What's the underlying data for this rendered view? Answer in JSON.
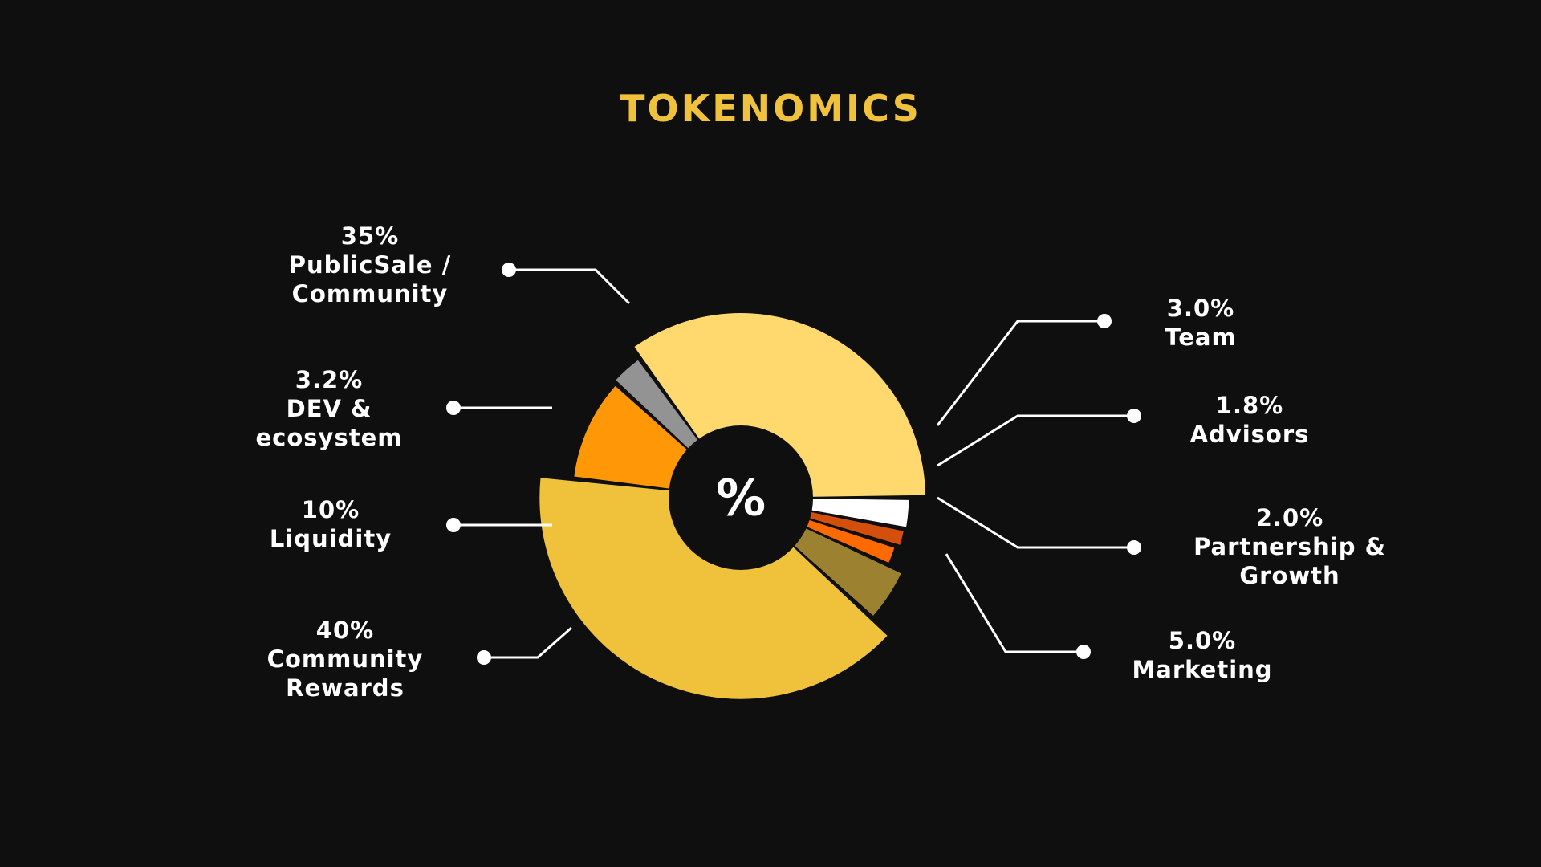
{
  "page": {
    "title": "TOKENOMICS",
    "title_color": "#F0C23B",
    "background": "#0f0f10"
  },
  "chart_data": {
    "type": "pie",
    "title": "TOKENOMICS",
    "center_label": "%",
    "slices": [
      {
        "key": "public-sale",
        "value": 35,
        "pct_label": "35%",
        "label_lines": [
          "PublicSale /",
          "Community"
        ],
        "color": "#FFD96E"
      },
      {
        "key": "team",
        "value": 3.0,
        "pct_label": "3.0%",
        "label_lines": [
          "Team"
        ],
        "color": "#FFFFFF"
      },
      {
        "key": "advisors",
        "value": 1.8,
        "pct_label": "1.8%",
        "label_lines": [
          "Advisors"
        ],
        "color": "#D44E0C"
      },
      {
        "key": "partnership",
        "value": 2.0,
        "pct_label": "2.0%",
        "label_lines": [
          "Partnership &",
          "Growth"
        ],
        "color": "#FF6A00"
      },
      {
        "key": "marketing",
        "value": 5.0,
        "pct_label": "5.0%",
        "label_lines": [
          "Marketing"
        ],
        "color": "#9C8230"
      },
      {
        "key": "community-rewards",
        "value": 40,
        "pct_label": "40%",
        "label_lines": [
          "Community",
          "Rewards"
        ],
        "color": "#F0C23B"
      },
      {
        "key": "liquidity",
        "value": 10,
        "pct_label": "10%",
        "label_lines": [
          "Liquidity"
        ],
        "color": "#FF9707"
      },
      {
        "key": "dev-ecosystem",
        "value": 3.2,
        "pct_label": "3.2%",
        "label_lines": [
          "DEV &",
          "ecosystem"
        ],
        "color": "#939393"
      }
    ]
  }
}
